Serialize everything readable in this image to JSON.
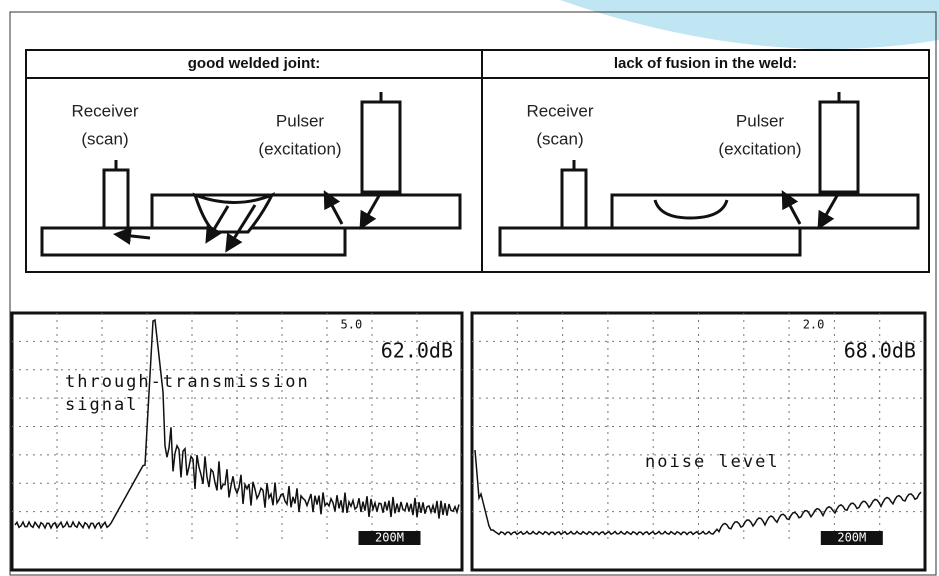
{
  "panels": [
    {
      "title": "good welded joint:",
      "receiver": "Receiver",
      "receiver_note": "(scan)",
      "pulser": "Pulser",
      "pulser_note": "(excitation)",
      "scope": {
        "setting": "5.0",
        "gain": "62.0dB",
        "range": "200M",
        "annotation": [
          "through-transmission",
          "signal"
        ]
      }
    },
    {
      "title": "lack of fusion in the weld:",
      "receiver": "Receiver",
      "receiver_note": "(scan)",
      "pulser": "Pulser",
      "pulser_note": "(excitation)",
      "scope": {
        "setting": "2.0",
        "gain": "68.0dB",
        "range": "200M",
        "annotation": [
          "noise level"
        ]
      }
    }
  ]
}
